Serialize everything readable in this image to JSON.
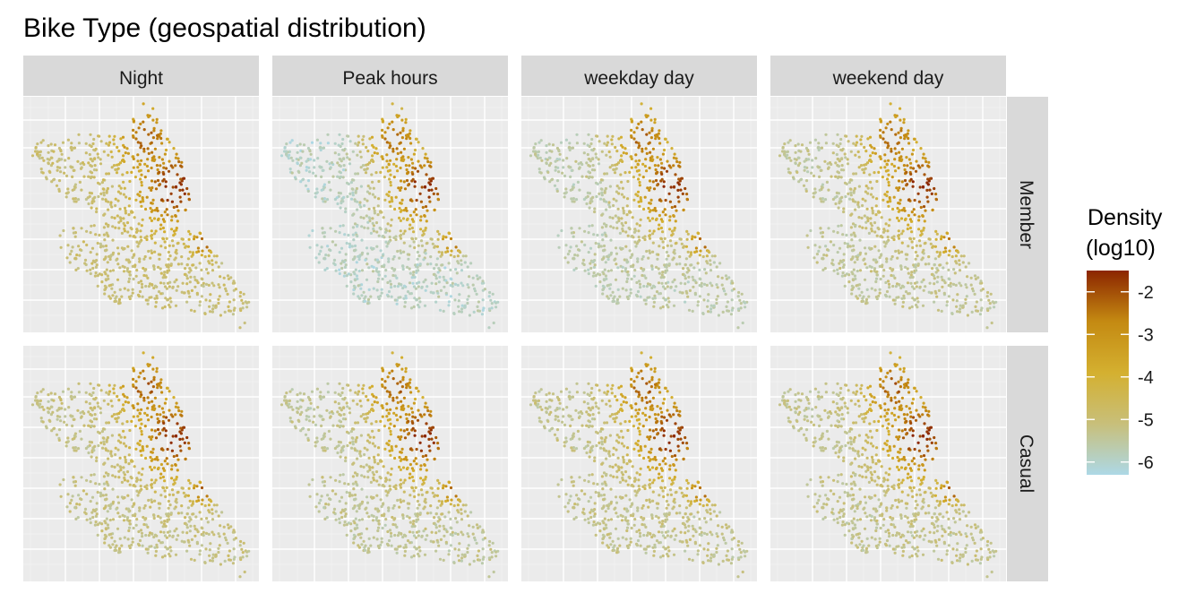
{
  "chart_data": {
    "type": "scatter",
    "title": "Bike Type (geospatial distribution)",
    "facet_columns": [
      "Night",
      "Peak hours",
      "weekday day",
      "weekend day"
    ],
    "facet_rows": [
      "Member",
      "Casual"
    ],
    "xlabel": "",
    "ylabel": "",
    "axis_ticks_visible": false,
    "grid": true,
    "panel_background": "#ebebeb",
    "legend": {
      "title": "Density\n(log10)",
      "placement": "right",
      "labels": [
        "-2",
        "-3",
        "-4",
        "-5",
        "-6"
      ],
      "range": [
        -6.3,
        -1.5
      ],
      "colors": [
        "#add8e6",
        "#c8bf7a",
        "#d4b030",
        "#c48a12",
        "#8b2500"
      ]
    },
    "density_summary_log10": [
      {
        "facet_row": "Member",
        "facet_column": "Night",
        "min": -5.5,
        "max": -1.6
      },
      {
        "facet_row": "Member",
        "facet_column": "Peak hours",
        "min": -6.2,
        "max": -1.6
      },
      {
        "facet_row": "Member",
        "facet_column": "weekday day",
        "min": -6.0,
        "max": -1.6
      },
      {
        "facet_row": "Member",
        "facet_column": "weekend day",
        "min": -5.8,
        "max": -1.6
      },
      {
        "facet_row": "Casual",
        "facet_column": "Night",
        "min": -5.6,
        "max": -1.6
      },
      {
        "facet_row": "Casual",
        "facet_column": "Peak hours",
        "min": -5.8,
        "max": -1.6
      },
      {
        "facet_row": "Casual",
        "facet_column": "weekday day",
        "min": -5.7,
        "max": -1.6
      },
      {
        "facet_row": "Casual",
        "facet_column": "weekend day",
        "min": -5.7,
        "max": -1.6
      }
    ]
  }
}
